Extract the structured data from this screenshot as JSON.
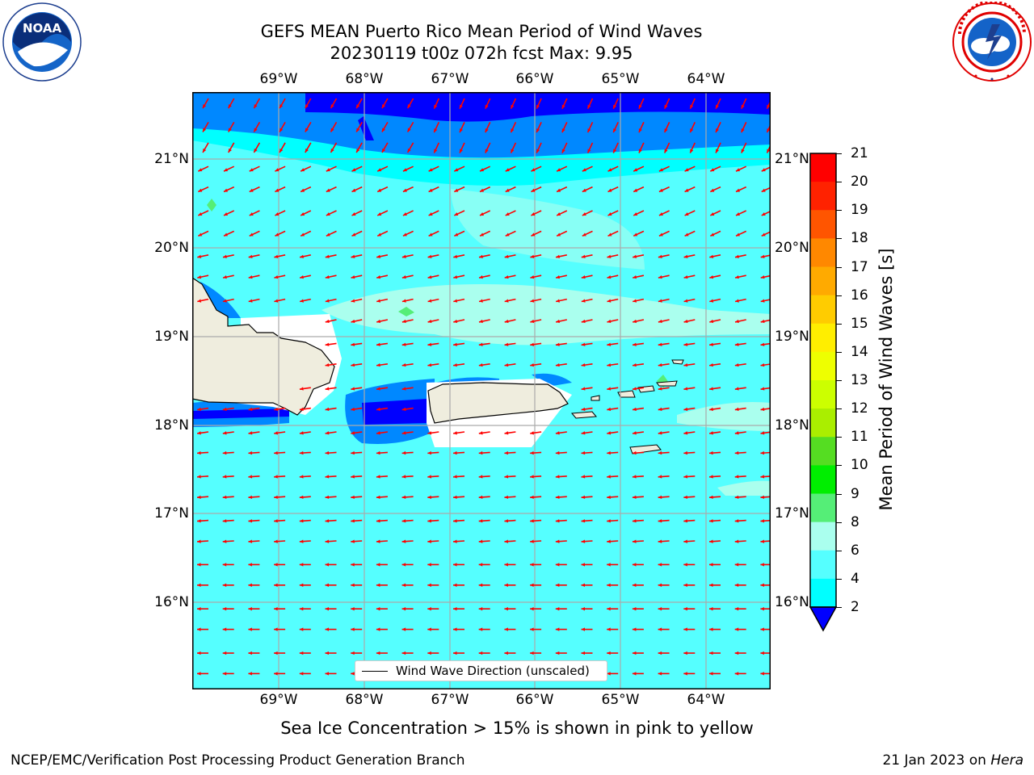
{
  "title": {
    "line1": "GEFS MEAN Puerto Rico Mean Period of Wind Waves",
    "line2": "20230119 t00z 072h fcst   Max: 9.95"
  },
  "logos": {
    "left": "noaa-logo",
    "right": "national-weather-service-logo",
    "left_text": "NOAA",
    "left_ring_text": "NATIONAL OCEANIC AND ATMOSPHERIC ADMINISTRATION · U.S. DEPARTMENT OF COMMERCE",
    "right_ring_text": "NATIONAL WEATHER SERVICE"
  },
  "map": {
    "lon_labels": [
      "69°W",
      "68°W",
      "67°W",
      "66°W",
      "65°W",
      "64°W"
    ],
    "lat_labels": [
      "21°N",
      "20°N",
      "19°N",
      "18°N",
      "17°N",
      "16°N"
    ],
    "legend_label": "Wind Wave Direction (unscaled)",
    "arrow_color": "#ff0000",
    "land_color": "#efedde"
  },
  "colorbar": {
    "label": "Mean Period of Wind Waves [s]",
    "ticks": [
      "21",
      "20",
      "19",
      "18",
      "17",
      "16",
      "15",
      "14",
      "13",
      "12",
      "11",
      "10",
      "9",
      "8",
      "6",
      "4",
      "2"
    ],
    "colors": [
      "#ff0000",
      "#ff2200",
      "#ff5500",
      "#ff8800",
      "#ffaa00",
      "#ffcc00",
      "#ffee00",
      "#eeff00",
      "#ccff00",
      "#aaee00",
      "#55dd22",
      "#00ee00",
      "#55ee77",
      "#aaffee",
      "#55ffff",
      "#00ffff",
      "#0088ff",
      "#0000ff"
    ]
  },
  "subtitle": "Sea Ice Concentration > 15% is shown in pink to yellow",
  "footer": {
    "left": "NCEP/EMC/Verification Post Processing Product Generation Branch",
    "right_date": "21 Jan 2023 on ",
    "right_host": "Hera"
  }
}
